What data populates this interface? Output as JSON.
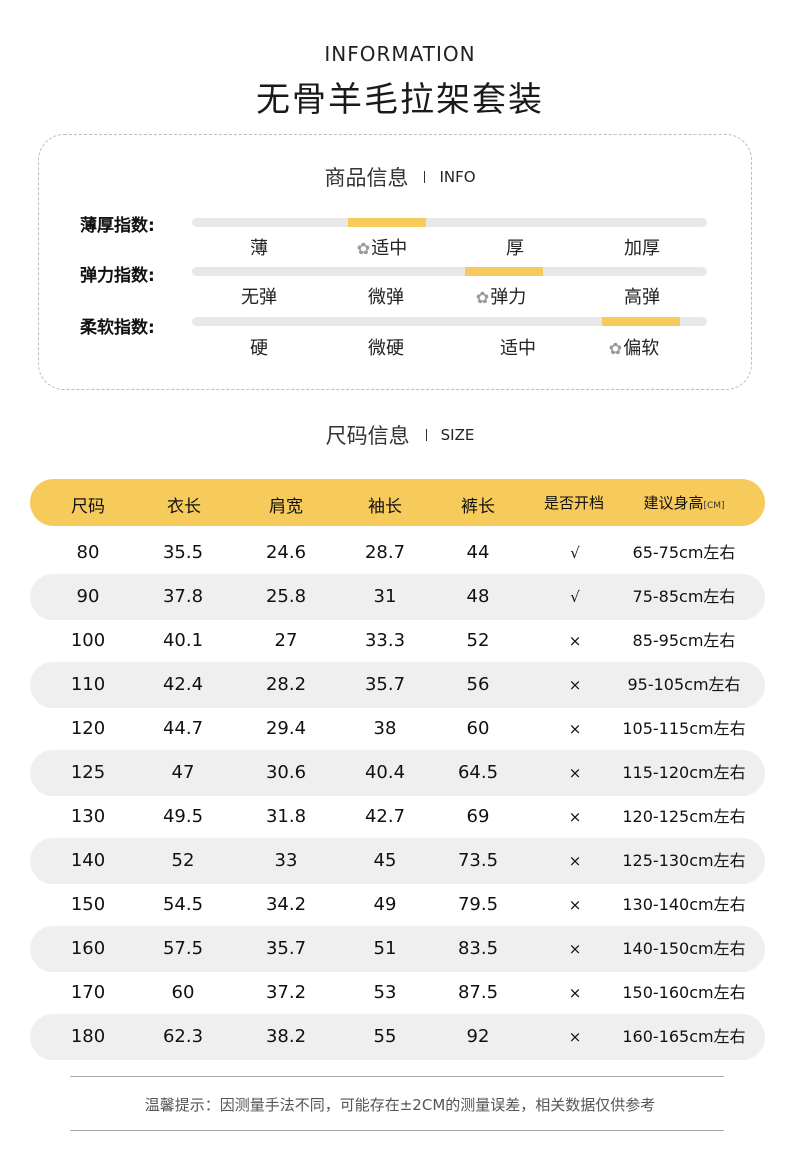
{
  "header": {
    "en": "INFORMATION",
    "cn": "无骨羊毛拉架套装"
  },
  "product_info": {
    "title_cn": "商品信息",
    "title_en": "INFO",
    "selected_icon": "flower-icon",
    "scales": [
      {
        "label": "薄厚指数:",
        "options": [
          "薄",
          "适中",
          "厚",
          "加厚"
        ],
        "selected": 1
      },
      {
        "label": "弹力指数:",
        "options": [
          "无弹",
          "微弹",
          "弹力",
          "高弹"
        ],
        "selected": 2
      },
      {
        "label": "柔软指数:",
        "options": [
          "硬",
          "微硬",
          "适中",
          "偏软"
        ],
        "selected": 3
      }
    ]
  },
  "size_info": {
    "title_cn": "尺码信息",
    "title_en": "SIZE",
    "columns": [
      "尺码",
      "衣长",
      "肩宽",
      "袖长",
      "裤长",
      "是否开档",
      "建议身高"
    ],
    "height_unit": "[CM]",
    "rows": [
      [
        "80",
        "35.5",
        "24.6",
        "28.7",
        "44",
        "√",
        "65-75cm左右"
      ],
      [
        "90",
        "37.8",
        "25.8",
        "31",
        "48",
        "√",
        "75-85cm左右"
      ],
      [
        "100",
        "40.1",
        "27",
        "33.3",
        "52",
        "×",
        "85-95cm左右"
      ],
      [
        "110",
        "42.4",
        "28.2",
        "35.7",
        "56",
        "×",
        "95-105cm左右"
      ],
      [
        "120",
        "44.7",
        "29.4",
        "38",
        "60",
        "×",
        "105-115cm左右"
      ],
      [
        "125",
        "47",
        "30.6",
        "40.4",
        "64.5",
        "×",
        "115-120cm左右"
      ],
      [
        "130",
        "49.5",
        "31.8",
        "42.7",
        "69",
        "×",
        "120-125cm左右"
      ],
      [
        "140",
        "52",
        "33",
        "45",
        "73.5",
        "×",
        "125-130cm左右"
      ],
      [
        "150",
        "54.5",
        "34.2",
        "49",
        "79.5",
        "×",
        "130-140cm左右"
      ],
      [
        "160",
        "57.5",
        "35.7",
        "51",
        "83.5",
        "×",
        "140-150cm左右"
      ],
      [
        "170",
        "60",
        "37.2",
        "53",
        "87.5",
        "×",
        "150-160cm左右"
      ],
      [
        "180",
        "62.3",
        "38.2",
        "55",
        "92",
        "×",
        "160-165cm左右"
      ]
    ]
  },
  "footer": {
    "note": "温馨提示：因测量手法不同，可能存在±2CM的测量误差，相关数据仅供参考"
  },
  "colors": {
    "accent": "#f7cb5b",
    "track": "#e8e8e8",
    "row_shade": "#efefef"
  }
}
